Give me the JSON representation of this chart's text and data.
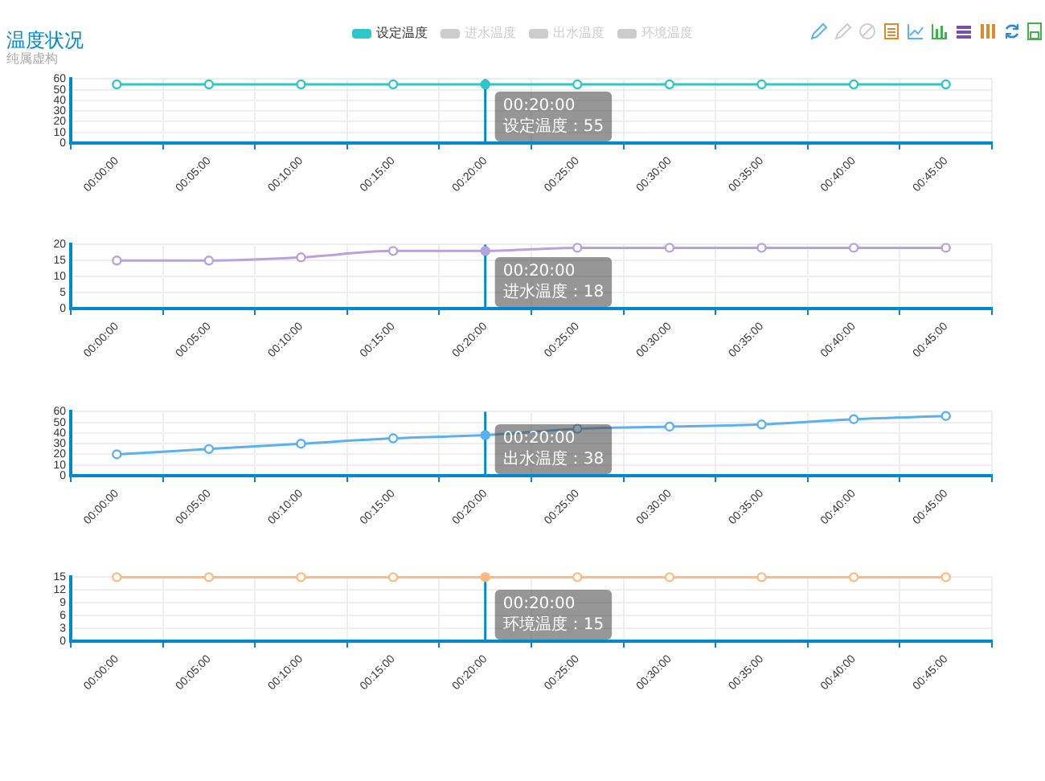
{
  "chart_data": [
    {
      "type": "line",
      "title": "温度状况",
      "subtitle": "纯属虚构",
      "categories": [
        "00:00:00",
        "00:05:00",
        "00:10:00",
        "00:15:00",
        "00:20:00",
        "00:25:00",
        "00:30:00",
        "00:35:00",
        "00:40:00",
        "00:45:00"
      ],
      "series": [
        {
          "name": "设定温度",
          "color": "#2ec7c9",
          "values": [
            55,
            55,
            55,
            55,
            55,
            55,
            55,
            55,
            55,
            55
          ]
        }
      ],
      "ylim": [
        0,
        60
      ],
      "yticks": [
        0,
        10,
        20,
        30,
        40,
        50,
        60
      ],
      "grid": true,
      "marker": "circle",
      "legend": "top",
      "ref_lines": [
        {
          "axis": "x",
          "value": "00:20:00",
          "color": "#008acd"
        }
      ],
      "annotations": [
        {
          "text": "00:20:00\n设定温度：55",
          "x": "00:20:00",
          "y": 55
        }
      ]
    },
    {
      "type": "line",
      "categories": [
        "00:00:00",
        "00:05:00",
        "00:10:00",
        "00:15:00",
        "00:20:00",
        "00:25:00",
        "00:30:00",
        "00:35:00",
        "00:40:00",
        "00:45:00"
      ],
      "series": [
        {
          "name": "进水温度",
          "color": "#b6a2de",
          "values": [
            15,
            15,
            16,
            18,
            18,
            19,
            19,
            19,
            19,
            19
          ]
        }
      ],
      "ylim": [
        0,
        20
      ],
      "yticks": [
        0,
        5,
        10,
        15,
        20
      ],
      "grid": true,
      "marker": "circle",
      "legend": "top",
      "ref_lines": [
        {
          "axis": "x",
          "value": "00:20:00",
          "color": "#008acd"
        }
      ],
      "annotations": [
        {
          "text": "00:20:00\n进水温度：18",
          "x": "00:20:00",
          "y": 18
        }
      ]
    },
    {
      "type": "line",
      "categories": [
        "00:00:00",
        "00:05:00",
        "00:10:00",
        "00:15:00",
        "00:20:00",
        "00:25:00",
        "00:30:00",
        "00:35:00",
        "00:40:00",
        "00:45:00"
      ],
      "series": [
        {
          "name": "出水温度",
          "color": "#5ab1ef",
          "values": [
            20,
            25,
            30,
            35,
            38,
            44,
            46,
            48,
            53,
            56
          ]
        }
      ],
      "ylim": [
        0,
        60
      ],
      "yticks": [
        0,
        10,
        20,
        30,
        40,
        50,
        60
      ],
      "grid": true,
      "marker": "circle",
      "legend": "top",
      "ref_lines": [
        {
          "axis": "x",
          "value": "00:20:00",
          "color": "#008acd"
        }
      ],
      "annotations": [
        {
          "text": "00:20:00\n出水温度：38",
          "x": "00:20:00",
          "y": 38
        }
      ]
    },
    {
      "type": "line",
      "categories": [
        "00:00:00",
        "00:05:00",
        "00:10:00",
        "00:15:00",
        "00:20:00",
        "00:25:00",
        "00:30:00",
        "00:35:00",
        "00:40:00",
        "00:45:00"
      ],
      "series": [
        {
          "name": "环境温度",
          "color": "#ffb980",
          "values": [
            15,
            15,
            15,
            15,
            15,
            15,
            15,
            15,
            15,
            15
          ]
        }
      ],
      "ylim": [
        0,
        15
      ],
      "yticks": [
        0,
        3,
        6,
        9,
        12,
        15
      ],
      "grid": true,
      "marker": "circle",
      "legend": "top",
      "ref_lines": [
        {
          "axis": "x",
          "value": "00:20:00",
          "color": "#008acd"
        }
      ],
      "annotations": [
        {
          "text": "00:20:00\n环境温度：15",
          "x": "00:20:00",
          "y": 15
        }
      ]
    }
  ]
}
